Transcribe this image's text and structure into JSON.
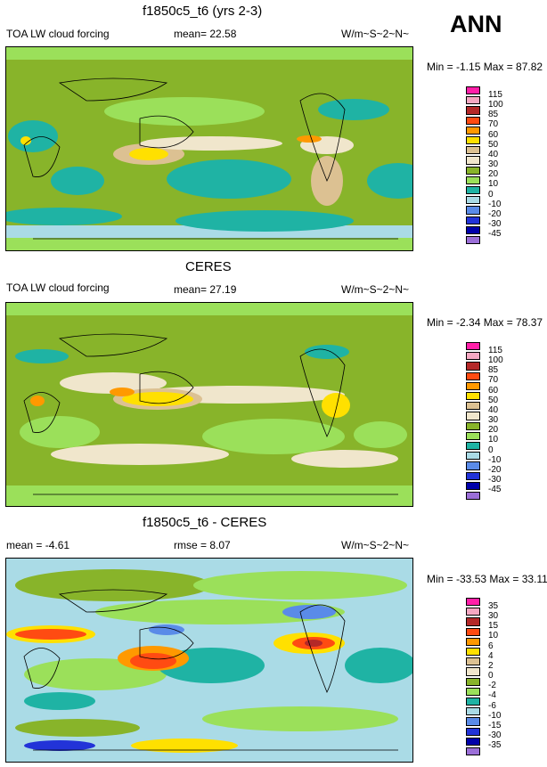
{
  "season": "ANN",
  "panels": [
    {
      "title": "f1850c5_t6 (yrs 2-3)",
      "left_label": "TOA LW cloud forcing",
      "center_label": "mean=  22.58",
      "right_label": "W/m~S~2~N~",
      "minmax_label": "Min =  -1.15 Max =  87.82"
    },
    {
      "title": "CERES",
      "left_label": "TOA LW cloud forcing",
      "center_label": "mean=  27.19",
      "right_label": "W/m~S~2~N~",
      "minmax_label": "Min =  -2.34 Max =  78.37"
    },
    {
      "title": "f1850c5_t6 - CERES",
      "left_label": "mean =  -4.61",
      "center_label": "rmse =   8.07",
      "right_label": "W/m~S~2~N~",
      "minmax_label": "Min = -33.53 Max =  33.11"
    }
  ],
  "chart_data": [
    {
      "type": "heatmap",
      "title": "f1850c5_t6 (yrs 2-3)",
      "field": "TOA LW cloud forcing",
      "units": "W/m~S~2~N~",
      "mean": 22.58,
      "min": -1.15,
      "max": 87.82,
      "levels": [
        115,
        100,
        85,
        70,
        60,
        50,
        40,
        30,
        20,
        10,
        0,
        -10,
        -20,
        -30,
        -45
      ],
      "colors": [
        "#ff1fa8",
        "#f5a8c2",
        "#b42828",
        "#ff4b12",
        "#ff9900",
        "#ffe000",
        "#dcc192",
        "#f0e6cc",
        "#88b42a",
        "#9be05a",
        "#1fb3a4",
        "#aadbe6",
        "#5a8be8",
        "#2233d8",
        "#0000aa",
        "#9b6fd8"
      ]
    },
    {
      "type": "heatmap",
      "title": "CERES",
      "field": "TOA LW cloud forcing",
      "units": "W/m~S~2~N~",
      "mean": 27.19,
      "min": -2.34,
      "max": 78.37,
      "levels": [
        115,
        100,
        85,
        70,
        60,
        50,
        40,
        30,
        20,
        10,
        0,
        -10,
        -20,
        -30,
        -45
      ],
      "colors": [
        "#ff1fa8",
        "#f5a8c2",
        "#b42828",
        "#ff4b12",
        "#ff9900",
        "#ffe000",
        "#dcc192",
        "#f0e6cc",
        "#88b42a",
        "#9be05a",
        "#1fb3a4",
        "#aadbe6",
        "#5a8be8",
        "#2233d8",
        "#0000aa",
        "#9b6fd8"
      ]
    },
    {
      "type": "heatmap",
      "title": "f1850c5_t6 - CERES",
      "field": "difference",
      "units": "W/m~S~2~N~",
      "mean": -4.61,
      "rmse": 8.07,
      "min": -33.53,
      "max": 33.11,
      "levels": [
        35,
        30,
        15,
        10,
        6,
        4,
        2,
        0,
        -2,
        -4,
        -6,
        -10,
        -15,
        -30,
        -35
      ],
      "colors": [
        "#ff1fa8",
        "#f5a8c2",
        "#b42828",
        "#ff4b12",
        "#ff9900",
        "#ffe000",
        "#dcc192",
        "#f0e6cc",
        "#88b42a",
        "#9be05a",
        "#1fb3a4",
        "#aadbe6",
        "#5a8be8",
        "#2233d8",
        "#0000aa",
        "#9b6fd8"
      ]
    }
  ]
}
